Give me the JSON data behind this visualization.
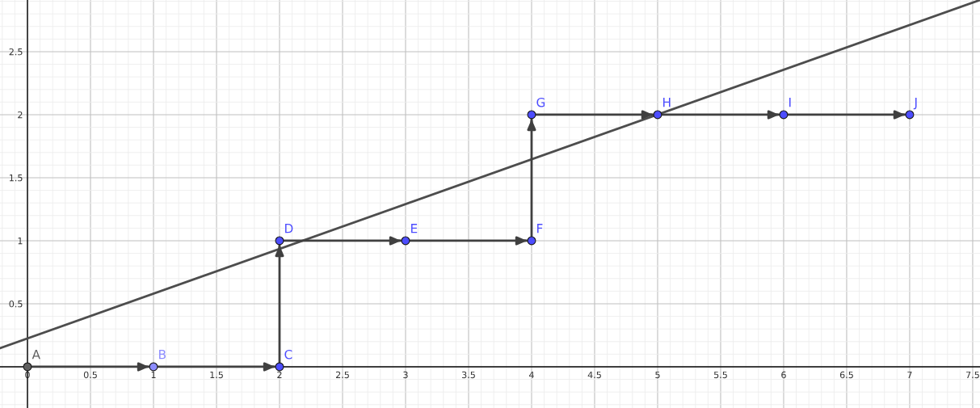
{
  "chart_data": {
    "type": "scatter",
    "xlim": [
      -0.218,
      7.558
    ],
    "ylim": [
      -0.327,
      2.91
    ],
    "xticks": [
      0,
      0.5,
      1,
      1.5,
      2,
      2.5,
      3,
      3.5,
      4,
      4.5,
      5,
      5.5,
      6,
      6.5,
      7,
      7.5
    ],
    "yticks": [
      0.5,
      1,
      1.5,
      2,
      2.5
    ],
    "grid": true,
    "series": [
      {
        "type": "line",
        "x": [
          -0.218,
          7.558
        ],
        "values": [
          0.147,
          2.91
        ],
        "color": "#4d4d4d"
      },
      {
        "type": "line",
        "x": [
          0,
          1,
          2,
          2,
          3,
          4,
          4,
          5,
          6,
          7
        ],
        "values": [
          0,
          0,
          0,
          1,
          1,
          1,
          2,
          2,
          2,
          2
        ],
        "color": "#404040"
      },
      {
        "x": [
          0,
          1,
          2,
          2,
          3,
          4,
          4,
          5,
          6,
          7
        ],
        "values": [
          0,
          0,
          0,
          1,
          1,
          1,
          2,
          2,
          2,
          2
        ],
        "colors": [
          "#606060",
          "#8c8cff",
          "#4d4dff",
          "#4d4dff",
          "#4d4dff",
          "#4d4dff",
          "#4d4dff",
          "#4d4dff",
          "#4d4dff",
          "#4d4dff"
        ]
      }
    ],
    "annotations": [
      {
        "text": "A",
        "x": 0,
        "y": 0
      },
      {
        "text": "B",
        "x": 1,
        "y": 0
      },
      {
        "text": "C",
        "x": 2,
        "y": 0
      },
      {
        "text": "D",
        "x": 2,
        "y": 1
      },
      {
        "text": "E",
        "x": 3,
        "y": 1
      },
      {
        "text": "F",
        "x": 4,
        "y": 1
      },
      {
        "text": "G",
        "x": 4,
        "y": 2
      },
      {
        "text": "H",
        "x": 5,
        "y": 2
      },
      {
        "text": "I",
        "x": 6,
        "y": 2
      },
      {
        "text": "J",
        "x": 7,
        "y": 2
      }
    ]
  }
}
